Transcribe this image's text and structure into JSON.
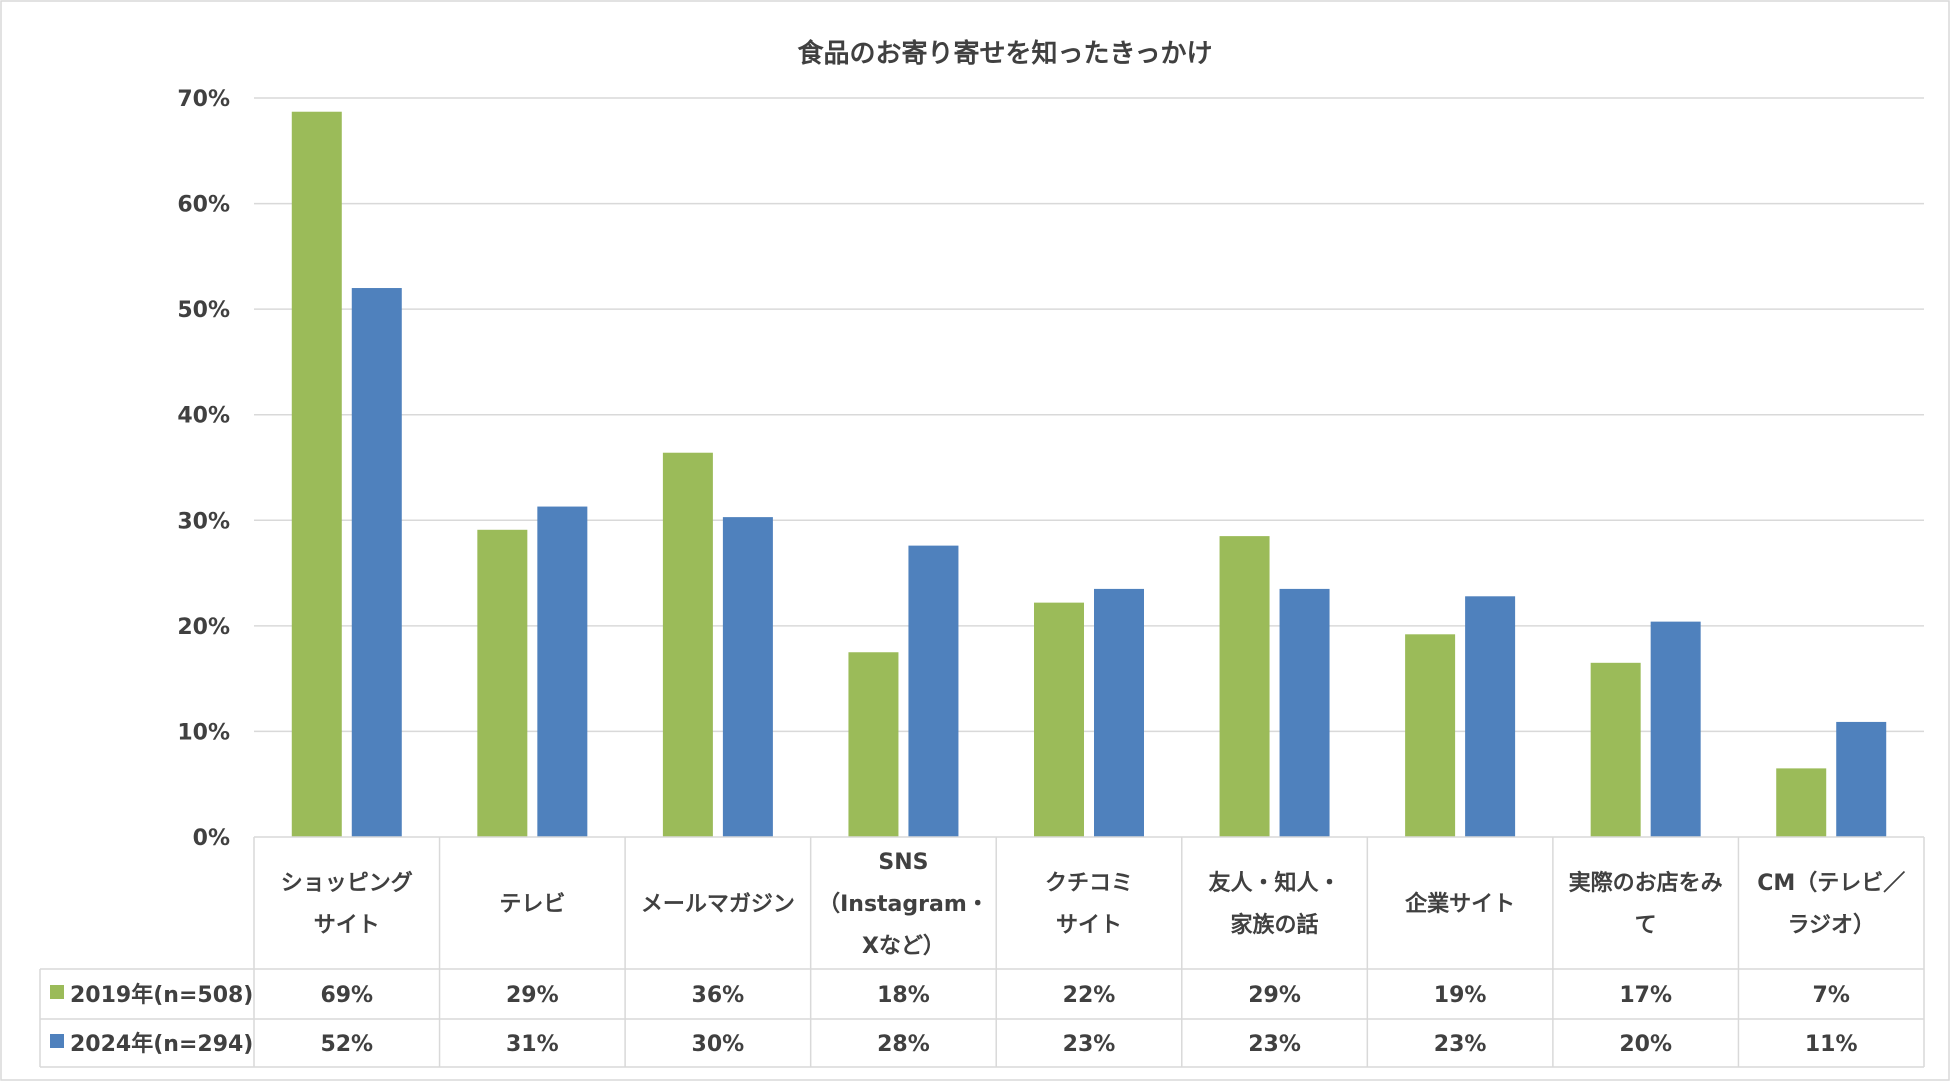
{
  "chart_data": {
    "type": "bar",
    "title": "食品のお寄り寄せを知ったきっかけ",
    "ylim": [
      0,
      70
    ],
    "yticks": [
      "0%",
      "10%",
      "20%",
      "30%",
      "40%",
      "50%",
      "60%",
      "70%"
    ],
    "categories": [
      [
        "ショッピング",
        "サイト"
      ],
      [
        "テレビ"
      ],
      [
        "メールマガジン"
      ],
      [
        "SNS",
        "（Instagram・",
        "Xなど）"
      ],
      [
        "クチコミ",
        "サイト"
      ],
      [
        "友人・知人・",
        "家族の話"
      ],
      [
        "企業サイト"
      ],
      [
        "実際のお店をみ",
        "て"
      ],
      [
        "CM（テレビ／",
        "ラジオ）"
      ]
    ],
    "series": [
      {
        "name": "2019年(n=508)",
        "color": "#9BBB59",
        "values": [
          68.7,
          29.1,
          36.4,
          17.5,
          22.2,
          28.5,
          19.2,
          16.5,
          6.5
        ],
        "labels": [
          "69%",
          "29%",
          "36%",
          "18%",
          "22%",
          "29%",
          "19%",
          "17%",
          "7%"
        ]
      },
      {
        "name": "2024年(n=294)",
        "color": "#4F81BD",
        "values": [
          52.0,
          31.3,
          30.3,
          27.6,
          23.5,
          23.5,
          22.8,
          20.4,
          10.9
        ],
        "labels": [
          "52%",
          "31%",
          "30%",
          "28%",
          "23%",
          "23%",
          "23%",
          "20%",
          "11%"
        ]
      }
    ],
    "grid": true,
    "legend": "data-table"
  }
}
